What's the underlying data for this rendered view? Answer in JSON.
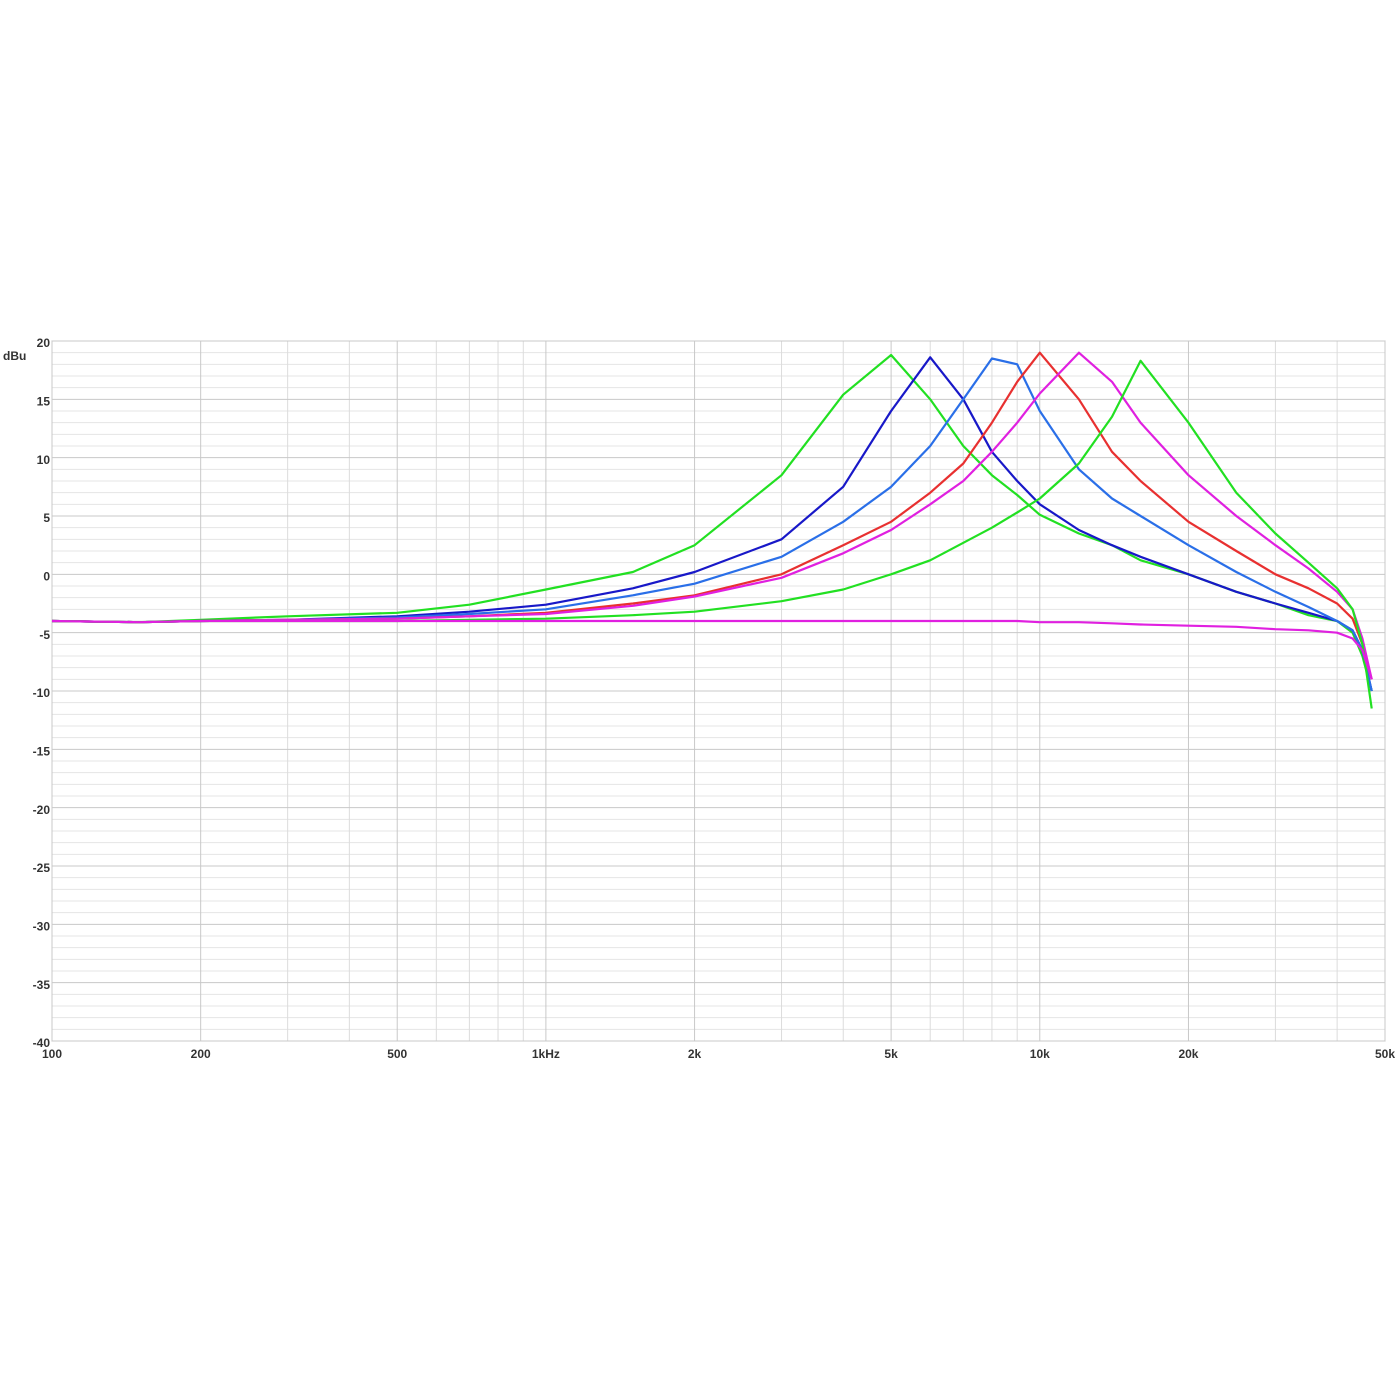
{
  "chart_data": {
    "type": "line",
    "y_label": "dBu",
    "log_x": true,
    "grid": true,
    "xlim": [
      100,
      50000
    ],
    "xticks": [
      100,
      200,
      500,
      {
        "value": 1000,
        "label": "1kHz"
      },
      {
        "value": 2000,
        "label": "2k"
      },
      {
        "value": 5000,
        "label": "5k"
      },
      {
        "value": 10000,
        "label": "10k"
      },
      {
        "value": 20000,
        "label": "20k"
      },
      {
        "value": 50000,
        "label": "50k"
      }
    ],
    "x_minor_ticks": [
      300,
      400,
      600,
      700,
      800,
      900,
      3000,
      4000,
      6000,
      7000,
      8000,
      9000,
      30000,
      40000
    ],
    "ylim": [
      -40,
      20
    ],
    "yticks": [
      20,
      15,
      10,
      5,
      0,
      -5,
      -10,
      -15,
      -20,
      -25,
      -30,
      -35,
      -40
    ],
    "y_minor_ticks": [
      19,
      18,
      17,
      16,
      14,
      13,
      12,
      11,
      9,
      8,
      7,
      6,
      4,
      3,
      2,
      1,
      -1,
      -2,
      -3,
      -4,
      -6,
      -7,
      -8,
      -9,
      -11,
      -12,
      -13,
      -14,
      -16,
      -17,
      -18,
      -19,
      -21,
      -22,
      -23,
      -24,
      -26,
      -27,
      -28,
      -29,
      -31,
      -32,
      -33,
      -34,
      -36,
      -37,
      -38,
      -39
    ],
    "x": [
      100,
      150,
      200,
      300,
      500,
      700,
      1000,
      1500,
      2000,
      3000,
      4000,
      5000,
      6000,
      7000,
      8000,
      9000,
      10000,
      12000,
      14000,
      16000,
      20000,
      25000,
      30000,
      35000,
      40000,
      43000,
      45000,
      47000
    ],
    "series": [
      {
        "color": "#22e022",
        "values": [
          -4,
          -4.1,
          -3.9,
          -3.6,
          -3.3,
          -2.6,
          -1.3,
          0.2,
          2.5,
          8.5,
          15.4,
          18.8,
          15,
          11,
          8.5,
          6.8,
          5.1,
          3.5,
          2.5,
          1.2,
          0,
          -1.5,
          -2.5,
          -3.5,
          -4,
          -5,
          -7,
          -10
        ]
      },
      {
        "color": "#1818c8",
        "values": [
          -4,
          -4.1,
          -4,
          -3.9,
          -3.6,
          -3.2,
          -2.6,
          -1.2,
          0.2,
          3,
          7.5,
          14,
          18.6,
          15,
          10.5,
          8,
          6,
          3.8,
          2.5,
          1.5,
          0,
          -1.5,
          -2.5,
          -3.3,
          -4,
          -4.8,
          -6.5,
          -10
        ]
      },
      {
        "color": "#2a6fe8",
        "values": [
          -4,
          -4.1,
          -4,
          -3.9,
          -3.7,
          -3.4,
          -3,
          -1.8,
          -0.8,
          1.5,
          4.5,
          7.5,
          11,
          15,
          18.5,
          18,
          14,
          9,
          6.5,
          5,
          2.5,
          0.2,
          -1.5,
          -2.8,
          -4,
          -4.8,
          -6.5,
          -10
        ]
      },
      {
        "color": "#e83030",
        "values": [
          -4,
          -4.1,
          -4,
          -3.9,
          -3.8,
          -3.6,
          -3.3,
          -2.5,
          -1.8,
          0,
          2.5,
          4.5,
          7,
          9.5,
          13,
          16.5,
          19,
          15,
          10.5,
          8,
          4.5,
          2,
          0,
          -1.2,
          -2.5,
          -3.8,
          -6,
          -9
        ]
      },
      {
        "color": "#e020e0",
        "values": [
          -4,
          -4.1,
          -4,
          -3.9,
          -3.8,
          -3.6,
          -3.4,
          -2.7,
          -1.9,
          -0.3,
          1.8,
          3.8,
          6,
          8,
          10.5,
          13,
          15.5,
          19,
          16.5,
          13,
          8.5,
          5,
          2.5,
          0.5,
          -1.5,
          -3,
          -5.5,
          -9
        ]
      },
      {
        "color": "#22e022",
        "values": [
          -4,
          -4.1,
          -4,
          -4,
          -4,
          -3.9,
          -3.8,
          -3.5,
          -3.2,
          -2.3,
          -1.3,
          0,
          1.2,
          2.7,
          4,
          5.3,
          6.5,
          9.5,
          13.5,
          18.3,
          13,
          7,
          3.5,
          1,
          -1.2,
          -3,
          -6,
          -11.5
        ]
      },
      {
        "color": "#e020e0",
        "values": [
          -4,
          -4.1,
          -4,
          -4,
          -4,
          -4,
          -4,
          -4,
          -4,
          -4,
          -4,
          -4,
          -4,
          -4,
          -4,
          -4,
          -4.1,
          -4.1,
          -4.2,
          -4.3,
          -4.4,
          -4.5,
          -4.7,
          -4.8,
          -5,
          -5.5,
          -6.5,
          -9
        ]
      }
    ]
  }
}
